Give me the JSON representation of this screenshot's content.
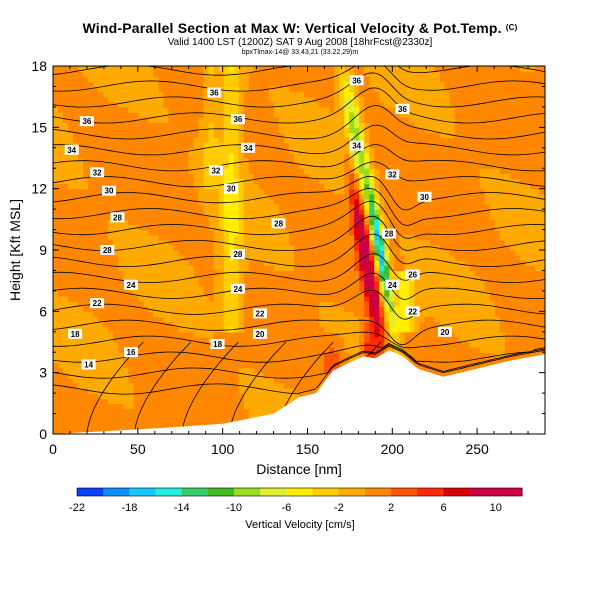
{
  "header": {
    "title": "Wind-Parallel Section at Max W: Vertical Velocity & Pot.Temp.",
    "copyright": "(C)",
    "subtitle": "Valid 1400 LST (1200Z) SAT 9 Aug 2008 [18hrFcst@2330z]",
    "credit": "bpxTlmax-14@ 33.43,21 (33.22,29)m"
  },
  "colors": {
    "terrain": "#ffffff",
    "contour": "#000000",
    "scale": [
      "#0000cc",
      "#0a40ff",
      "#0a90ff",
      "#19c8ff",
      "#22eedd",
      "#33cc66",
      "#44bb22",
      "#99dd22",
      "#ddee33",
      "#ffee00",
      "#ffcc00",
      "#ffaa00",
      "#ff8800",
      "#ff5500",
      "#ff2a00",
      "#dd0000",
      "#cc0044"
    ]
  },
  "chart_data": {
    "type": "heatmap",
    "xlabel": "Distance [nm]",
    "ylabel": "Height [Kft MSL]",
    "xlim": [
      0,
      290
    ],
    "ylim": [
      0,
      18
    ],
    "x_ticks": [
      0,
      50,
      100,
      150,
      200,
      250
    ],
    "y_ticks": [
      0,
      3,
      6,
      9,
      12,
      15,
      18
    ],
    "grid": false,
    "colorbar": {
      "label": "Vertical Velocity [cm/s]",
      "ticks": [
        -22,
        -18,
        -14,
        -10,
        -6,
        -2,
        2,
        6,
        10
      ],
      "range": [
        -22,
        12
      ]
    },
    "field": "vertical velocity shaded, potential temperature contoured",
    "terrain": [
      {
        "x": 0,
        "h": 0
      },
      {
        "x": 65,
        "h": 0.3
      },
      {
        "x": 100,
        "h": 0.5
      },
      {
        "x": 130,
        "h": 1.0
      },
      {
        "x": 145,
        "h": 1.8
      },
      {
        "x": 155,
        "h": 2.0
      },
      {
        "x": 165,
        "h": 3.1
      },
      {
        "x": 175,
        "h": 3.5
      },
      {
        "x": 183,
        "h": 3.8
      },
      {
        "x": 190,
        "h": 3.7
      },
      {
        "x": 198,
        "h": 4.1
      },
      {
        "x": 206,
        "h": 3.8
      },
      {
        "x": 215,
        "h": 3.2
      },
      {
        "x": 230,
        "h": 2.8
      },
      {
        "x": 250,
        "h": 3.2
      },
      {
        "x": 270,
        "h": 3.6
      },
      {
        "x": 290,
        "h": 3.9
      }
    ],
    "contour_labels": [
      {
        "text": "36",
        "x": 95,
        "y": 16.7
      },
      {
        "text": "36",
        "x": 179,
        "y": 17.3
      },
      {
        "text": "36",
        "x": 20,
        "y": 15.3
      },
      {
        "text": "36",
        "x": 109,
        "y": 15.4
      },
      {
        "text": "36",
        "x": 206,
        "y": 15.9
      },
      {
        "text": "34",
        "x": 11,
        "y": 13.9
      },
      {
        "text": "34",
        "x": 115,
        "y": 14.0
      },
      {
        "text": "34",
        "x": 179,
        "y": 14.1
      },
      {
        "text": "32",
        "x": 26,
        "y": 12.8
      },
      {
        "text": "32",
        "x": 96,
        "y": 12.9
      },
      {
        "text": "32",
        "x": 200,
        "y": 12.7
      },
      {
        "text": "30",
        "x": 33,
        "y": 11.9
      },
      {
        "text": "30",
        "x": 105,
        "y": 12.0
      },
      {
        "text": "30",
        "x": 219,
        "y": 11.6
      },
      {
        "text": "28",
        "x": 38,
        "y": 10.6
      },
      {
        "text": "28",
        "x": 133,
        "y": 10.3
      },
      {
        "text": "28",
        "x": 198,
        "y": 9.8
      },
      {
        "text": "28",
        "x": 32,
        "y": 9.0
      },
      {
        "text": "28",
        "x": 109,
        "y": 8.8
      },
      {
        "text": "26",
        "x": 212,
        "y": 7.8
      },
      {
        "text": "24",
        "x": 46,
        "y": 7.3
      },
      {
        "text": "24",
        "x": 109,
        "y": 7.1
      },
      {
        "text": "24",
        "x": 200,
        "y": 7.3
      },
      {
        "text": "22",
        "x": 26,
        "y": 6.4
      },
      {
        "text": "22",
        "x": 122,
        "y": 5.9
      },
      {
        "text": "22",
        "x": 212,
        "y": 6.0
      },
      {
        "text": "20",
        "x": 122,
        "y": 4.9
      },
      {
        "text": "20",
        "x": 231,
        "y": 5.0
      },
      {
        "text": "18",
        "x": 13,
        "y": 4.9
      },
      {
        "text": "18",
        "x": 97,
        "y": 4.4
      },
      {
        "text": "16",
        "x": 46,
        "y": 4.0
      },
      {
        "text": "14",
        "x": 21,
        "y": 3.4
      }
    ]
  }
}
